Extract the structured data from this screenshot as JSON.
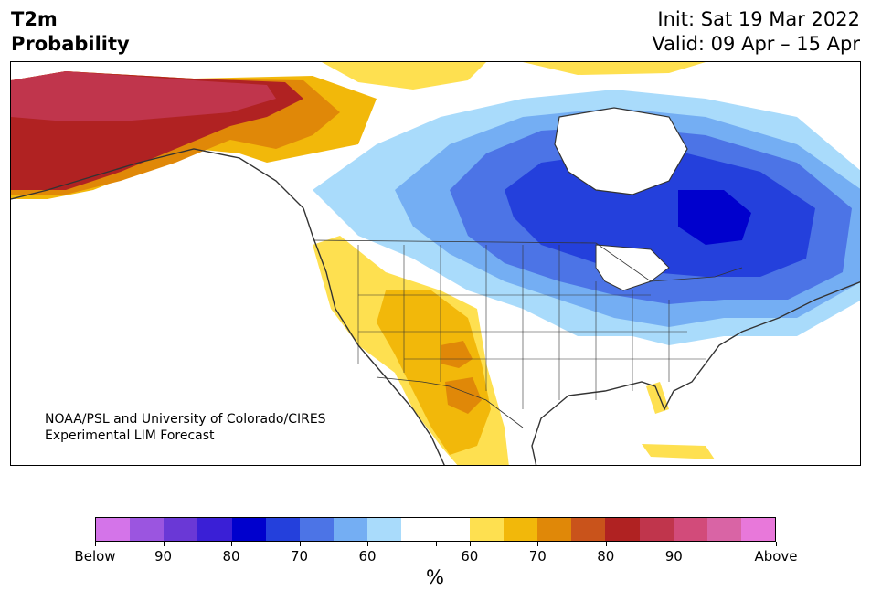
{
  "header": {
    "title_line1": "T2m",
    "title_line2": "Probability",
    "init": "Init: Sat 19 Mar 2022",
    "valid": "Valid: 09 Apr – 15 Apr"
  },
  "map": {
    "credit_line1": "NOAA/PSL and University of Colorado/CIRES",
    "credit_line2": "Experimental LIM Forecast"
  },
  "colorbar": {
    "colors": [
      "#d474e9",
      "#9b55e0",
      "#6a38d6",
      "#3a1fd6",
      "#0000cd",
      "#2440dc",
      "#4c74e6",
      "#74aef3",
      "#a9dbfb",
      "#ffffff",
      "#ffffff",
      "#fee050",
      "#f2b80a",
      "#e08808",
      "#c9531b",
      "#b02222",
      "#c0354c",
      "#d24b7a",
      "#d964a5",
      "#e878da"
    ],
    "labels": [
      "Below",
      "90",
      "80",
      "70",
      "60",
      "60",
      "70",
      "80",
      "90",
      "Above"
    ],
    "unit": "%"
  },
  "colors": {
    "cold_strong": "#0000cd",
    "warm_strong": "#b02222",
    "neutral": "#ffffff"
  }
}
